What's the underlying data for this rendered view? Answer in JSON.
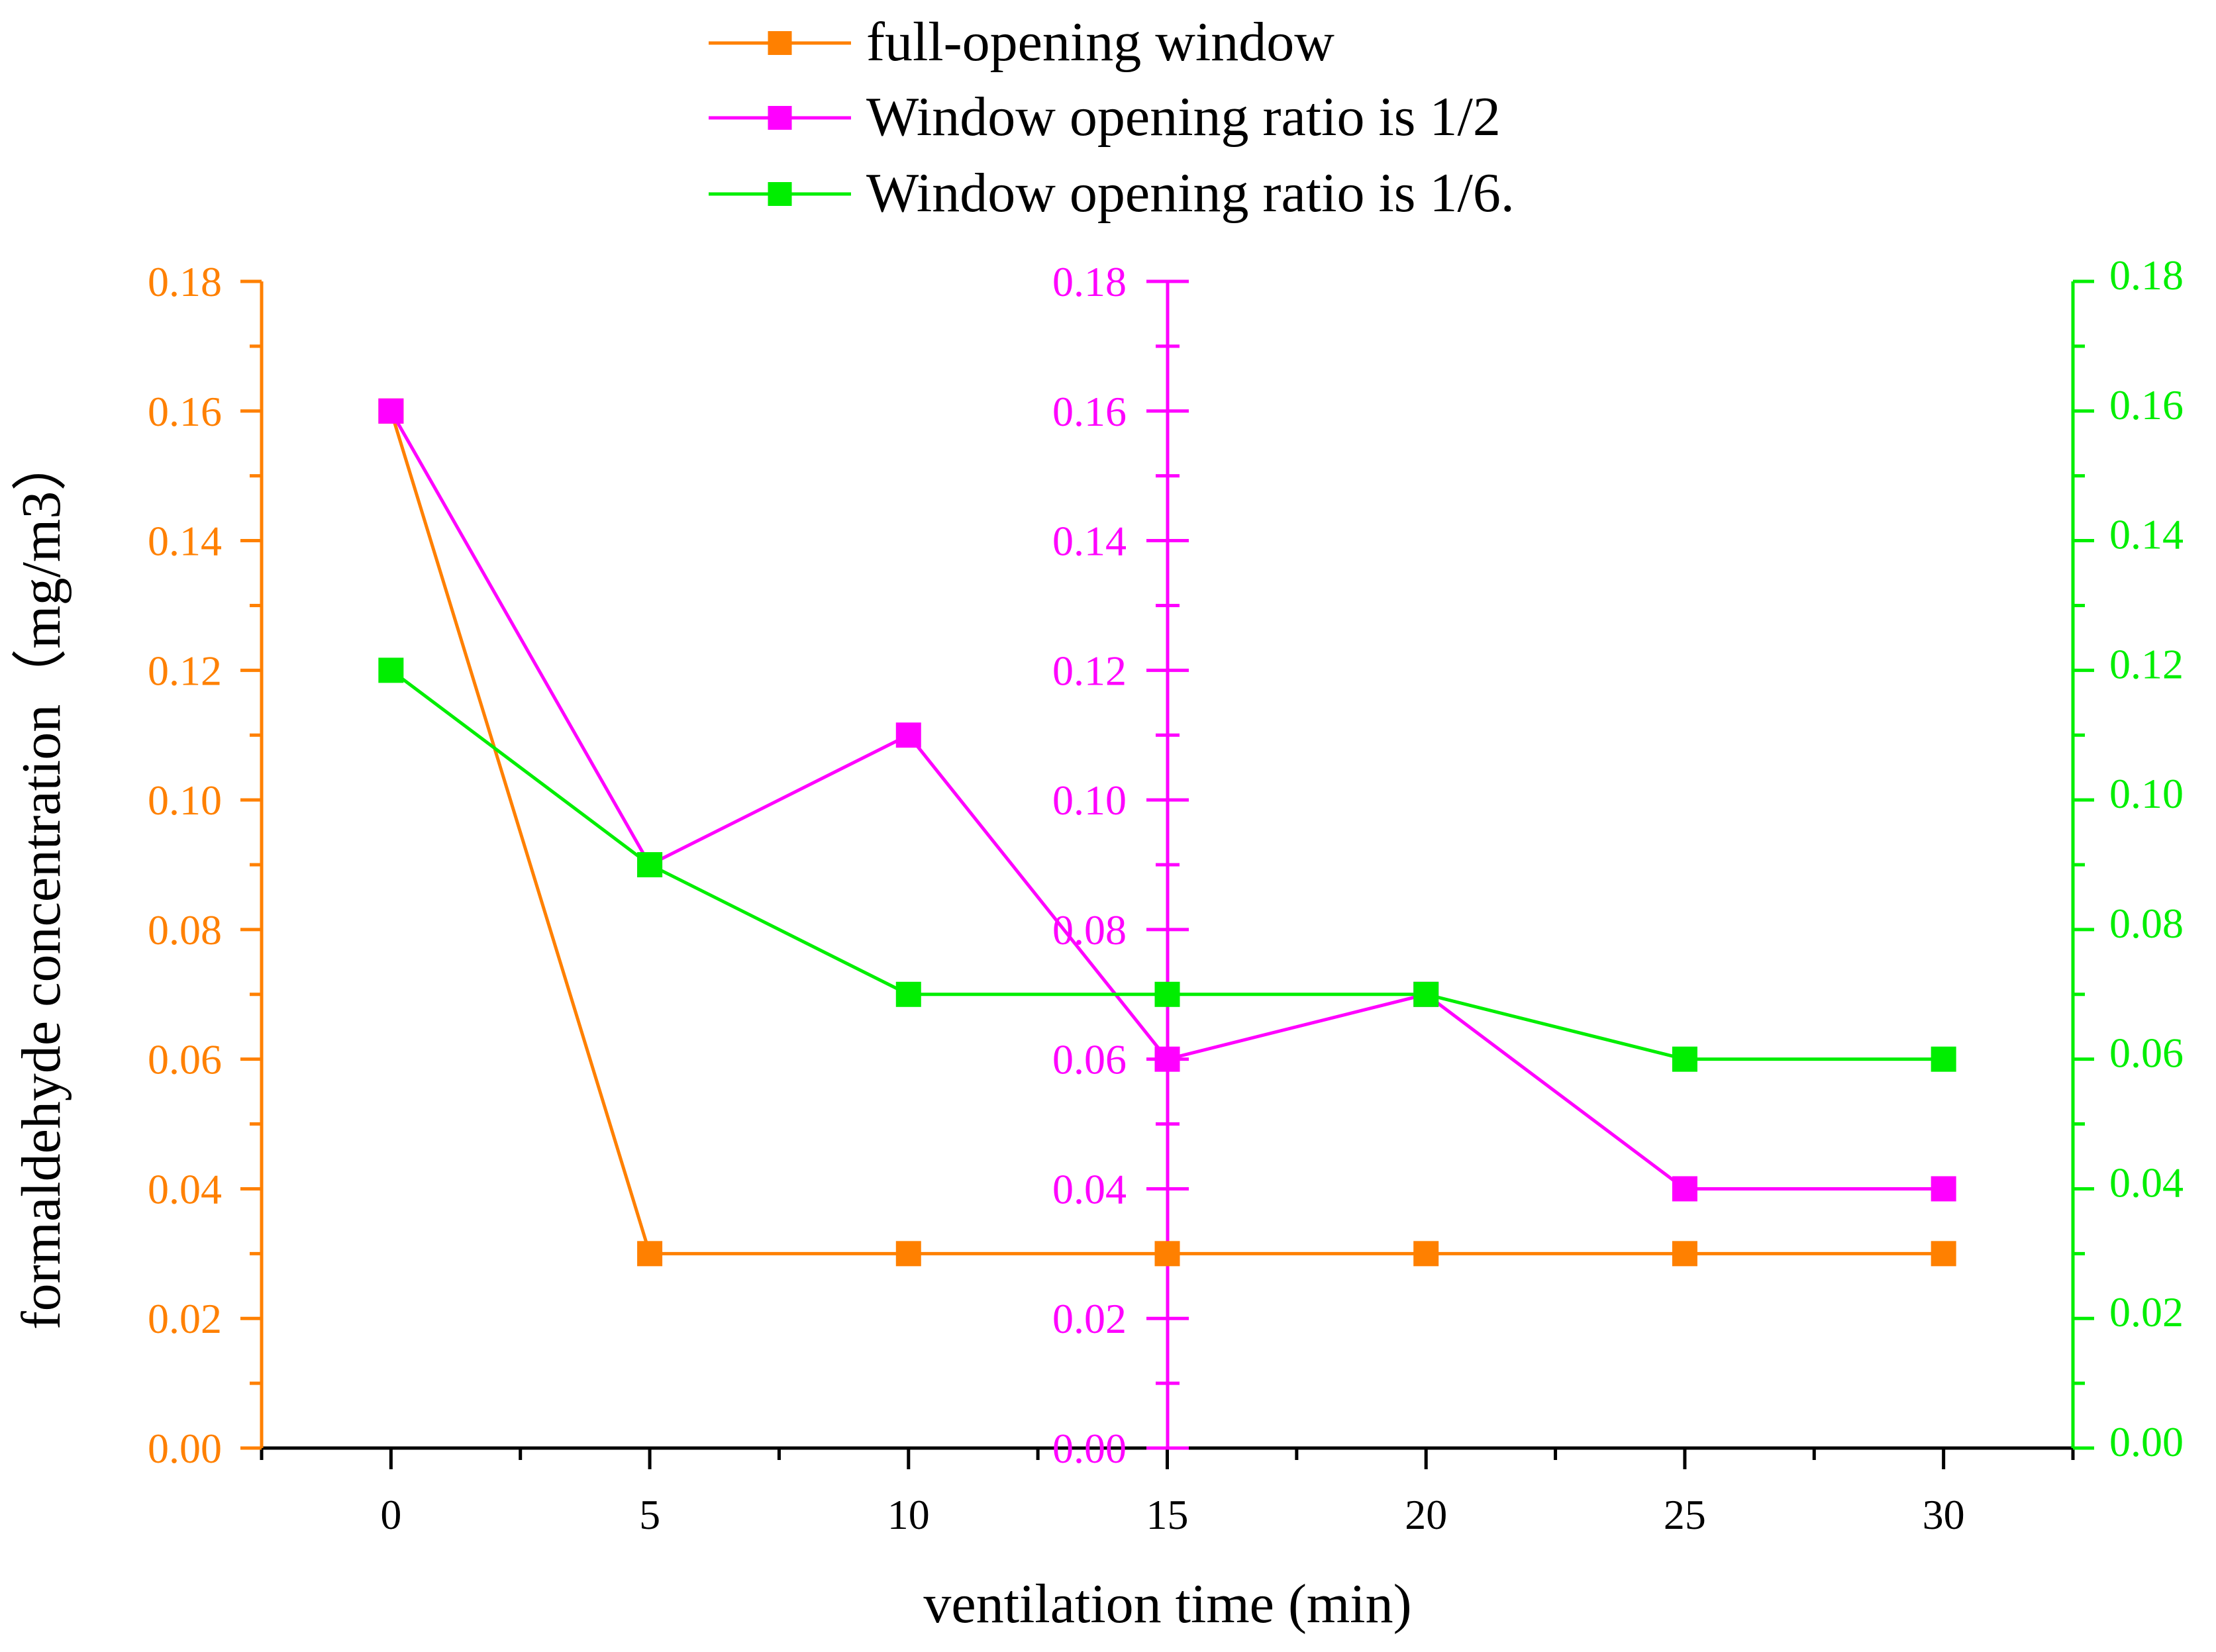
{
  "chart_data": {
    "type": "line",
    "xlabel": "ventilation time (min)",
    "ylabel": "formaldehyde concentration（mg/m3）",
    "x": [
      0,
      5,
      10,
      15,
      20,
      25,
      30
    ],
    "xticks": [
      "0",
      "5",
      "10",
      "15",
      "20",
      "25",
      "30"
    ],
    "xlim": [
      -2.5,
      32.5
    ],
    "ylim": [
      0,
      0.18
    ],
    "yticks": [
      "0.00",
      "0.02",
      "0.04",
      "0.06",
      "0.08",
      "0.10",
      "0.12",
      "0.14",
      "0.16",
      "0.18"
    ],
    "grid": false,
    "legend_position": "top-center",
    "axes": [
      {
        "name": "left",
        "color": "#ff8000"
      },
      {
        "name": "middle",
        "color": "#ff00ff"
      },
      {
        "name": "right",
        "color": "#00ee00"
      }
    ],
    "series": [
      {
        "name": "full-opening window",
        "color": "#ff8000",
        "values": [
          0.16,
          0.03,
          0.03,
          0.03,
          0.03,
          0.03,
          0.03
        ]
      },
      {
        "name": "Window opening ratio is 1/2",
        "color": "#ff00ff",
        "values": [
          0.16,
          0.09,
          0.11,
          0.06,
          0.07,
          0.04,
          0.04
        ]
      },
      {
        "name": "Window opening ratio is 1/6.",
        "color": "#00ee00",
        "values": [
          0.12,
          0.09,
          0.07,
          0.07,
          0.07,
          0.06,
          0.06
        ]
      }
    ]
  }
}
